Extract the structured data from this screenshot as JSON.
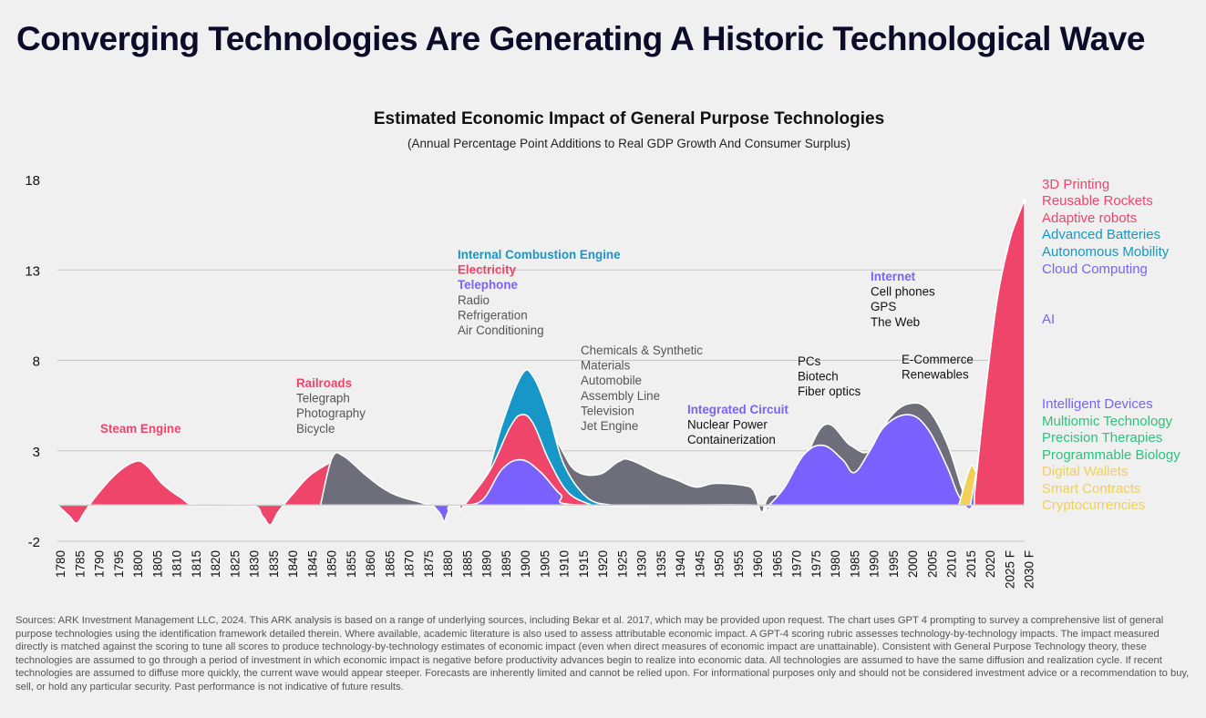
{
  "page": {
    "title": "Converging Technologies Are Generating A Historic Technological Wave",
    "sources": "Sources: ARK Investment Management LLC, 2024. This ARK analysis is based on a range of underlying sources, including Bekar et al. 2017, which may be provided upon request. The chart uses GPT 4 prompting to survey a comprehensive list of general purpose technologies using the identification framework detailed therein. Where available, academic literature is also used to assess attributable economic impact. A GPT-4 scoring rubric assesses technology-by-technology impacts. The impact measured directly is matched against the scoring to tune all scores to produce technology-by-technology estimates of economic impact (even when direct measures of economic impact are unattainable). Consistent with General Purpose Technology theory, these technologies are assumed to go through a period of investment in which economic impact is negative before productivity advances begin to realize into economic data. All technologies are assumed to have the same diffusion and realization cycle. If recent technologies are assumed to diffuse more quickly, the current wave would appear steeper. Forecasts are inherently limited and cannot be relied upon. For informational purposes only and should not be considered investment advice or a recommendation to buy, sell, or hold any particular security. Past performance is not indicative of future results."
  },
  "colors": {
    "pink": "#f0456b",
    "blue": "#1697c8",
    "purple": "#7b61ff",
    "gray": "#6e6e7a",
    "green": "#2ec27e",
    "yellow": "#f0cf5a",
    "dark": "#111111",
    "text_gray": "#555555"
  },
  "chart_data": {
    "type": "area",
    "title": "Estimated Economic Impact of General Purpose Technologies",
    "subtitle": "(Annual Percentage Point Additions to Real GDP Growth And Consumer Surplus)",
    "ylim": [
      -2,
      18
    ],
    "yticks": [
      "18",
      "13",
      "8",
      "3",
      "-2"
    ],
    "ytick_values": [
      18,
      13,
      8,
      3,
      -2
    ],
    "grid": true,
    "xticks": [
      "1780",
      "1785",
      "1790",
      "1795",
      "1800",
      "1805",
      "1810",
      "1815",
      "1820",
      "1825",
      "1830",
      "1835",
      "1840",
      "1845",
      "1850",
      "1855",
      "1860",
      "1865",
      "1870",
      "1875",
      "1880",
      "1885",
      "1890",
      "1895",
      "1900",
      "1905",
      "1910",
      "1915",
      "1920",
      "1925",
      "1930",
      "1935",
      "1940",
      "1945",
      "1950",
      "1955",
      "1960",
      "1965",
      "1970",
      "1975",
      "1980",
      "1985",
      "1990",
      "1995",
      "2000",
      "2005",
      "2010",
      "2015",
      "2020",
      "2025 F",
      "2030 F"
    ],
    "layers": [
      {
        "color_key": "pink",
        "points": [
          [
            1780,
            0
          ],
          [
            1783,
            -0.6
          ],
          [
            1785,
            -1.0
          ],
          [
            1787,
            -0.4
          ],
          [
            1790,
            0.5
          ],
          [
            1795,
            1.7
          ],
          [
            1800,
            2.4
          ],
          [
            1803,
            2.2
          ],
          [
            1807,
            1.2
          ],
          [
            1812,
            0.4
          ],
          [
            1816,
            0
          ],
          [
            1830,
            0
          ],
          [
            1833,
            -0.6
          ],
          [
            1835,
            -1.1
          ],
          [
            1837,
            -0.4
          ],
          [
            1840,
            0.4
          ],
          [
            1845,
            1.6
          ],
          [
            1850,
            2.3
          ],
          [
            1853,
            2.7
          ],
          [
            1857,
            1.8
          ],
          [
            1862,
            0.6
          ],
          [
            1868,
            0
          ],
          [
            1900,
            0
          ]
        ]
      },
      {
        "color_key": "gray",
        "points": [
          [
            1848,
            0
          ],
          [
            1851,
            2.6
          ],
          [
            1854,
            2.7
          ],
          [
            1860,
            1.6
          ],
          [
            1866,
            0.7
          ],
          [
            1873,
            0.2
          ],
          [
            1879,
            0
          ],
          [
            1900,
            0
          ]
        ]
      },
      {
        "color_key": "purple",
        "points": [
          [
            1877,
            0
          ],
          [
            1879,
            -0.5
          ],
          [
            1880,
            -0.9
          ],
          [
            1881,
            -0.4
          ],
          [
            1883,
            0
          ],
          [
            1900,
            0
          ]
        ]
      },
      {
        "color_key": "gray",
        "points": [
          [
            1895,
            0
          ],
          [
            1900,
            3.9
          ],
          [
            1905,
            5.2
          ],
          [
            1910,
            3.2
          ],
          [
            1914,
            1.9
          ],
          [
            1920,
            1.7
          ],
          [
            1925,
            2.4
          ],
          [
            1928,
            2.5
          ],
          [
            1935,
            1.8
          ],
          [
            1940,
            1.4
          ],
          [
            1945,
            1.0
          ],
          [
            1950,
            1.2
          ],
          [
            1957,
            1.1
          ],
          [
            1960,
            0.8
          ],
          [
            1962,
            -0.4
          ],
          [
            1964,
            0.5
          ],
          [
            1970,
            1.0
          ],
          [
            1978,
            4.4
          ],
          [
            1985,
            3.3
          ],
          [
            1990,
            3.0
          ],
          [
            1995,
            4.8
          ],
          [
            2000,
            5.6
          ],
          [
            2005,
            5.3
          ],
          [
            2010,
            3.4
          ],
          [
            2014,
            0.8
          ],
          [
            2016,
            0.2
          ],
          [
            2020,
            0
          ]
        ]
      },
      {
        "color_key": "blue",
        "points": [
          [
            1885,
            0
          ],
          [
            1890,
            1.0
          ],
          [
            1895,
            4.5
          ],
          [
            1900,
            7.2
          ],
          [
            1903,
            7.1
          ],
          [
            1907,
            5.0
          ],
          [
            1911,
            2.2
          ],
          [
            1917,
            0.4
          ],
          [
            1923,
            0
          ]
        ]
      },
      {
        "color_key": "pink",
        "points": [
          [
            1884,
            -0.3
          ],
          [
            1887,
            0.5
          ],
          [
            1892,
            2.0
          ],
          [
            1897,
            4.3
          ],
          [
            1900,
            5.0
          ],
          [
            1903,
            4.5
          ],
          [
            1907,
            2.5
          ],
          [
            1912,
            0.7
          ],
          [
            1918,
            0
          ]
        ]
      },
      {
        "color_key": "purple",
        "points": [
          [
            1885,
            0
          ],
          [
            1890,
            0.3
          ],
          [
            1895,
            2.0
          ],
          [
            1900,
            2.5
          ],
          [
            1905,
            1.8
          ],
          [
            1910,
            0.6
          ],
          [
            1915,
            0
          ],
          [
            1960,
            0
          ],
          [
            1962,
            -0.4
          ],
          [
            1964,
            0
          ],
          [
            1968,
            1.0
          ],
          [
            1973,
            2.8
          ],
          [
            1978,
            3.3
          ],
          [
            1983,
            2.5
          ],
          [
            1986,
            1.8
          ],
          [
            1990,
            3.0
          ],
          [
            1994,
            4.4
          ],
          [
            2000,
            5.0
          ],
          [
            2005,
            4.2
          ],
          [
            2010,
            2.1
          ],
          [
            2013,
            0.5
          ],
          [
            2016,
            -0.2
          ],
          [
            2018,
            1.0
          ],
          [
            2020,
            0
          ]
        ]
      },
      {
        "color_key": "yellow",
        "points": [
          [
            2013,
            0
          ],
          [
            2016,
            2.1
          ],
          [
            2018,
            1.8
          ],
          [
            2021,
            2.9
          ],
          [
            2024,
            3.5
          ],
          [
            2027,
            3.3
          ],
          [
            2030,
            3.0
          ]
        ]
      },
      {
        "color_key": "green",
        "points": [
          [
            2019,
            0
          ],
          [
            2022,
            1.5
          ],
          [
            2026,
            2.5
          ],
          [
            2030,
            2.9
          ]
        ]
      },
      {
        "color_key": "purple",
        "points": [
          [
            2016,
            0
          ],
          [
            2019,
            3.5
          ],
          [
            2022,
            6.0
          ],
          [
            2025,
            9.0
          ],
          [
            2027,
            11.0
          ],
          [
            2030,
            12.8
          ]
        ]
      },
      {
        "color_key": "blue",
        "points": [
          [
            2017,
            0
          ],
          [
            2020,
            5.0
          ],
          [
            2023,
            9.5
          ],
          [
            2026,
            12.5
          ],
          [
            2028,
            14.0
          ],
          [
            2030,
            15.3
          ]
        ]
      },
      {
        "color_key": "pink",
        "points": [
          [
            2017,
            0.5
          ],
          [
            2020,
            6.5
          ],
          [
            2023,
            11.5
          ],
          [
            2026,
            14.5
          ],
          [
            2028,
            15.8
          ],
          [
            2030,
            16.9
          ]
        ]
      }
    ],
    "annotations": [
      {
        "lines": [
          {
            "text": "Steam Engine",
            "color_key": "pink",
            "bold": true
          }
        ]
      },
      {
        "lines": [
          {
            "text": "Railroads",
            "color_key": "pink",
            "bold": true
          },
          {
            "text": "Telegraph",
            "color_key": "text_gray"
          },
          {
            "text": "Photography",
            "color_key": "text_gray"
          },
          {
            "text": "Bicycle",
            "color_key": "text_gray"
          }
        ]
      },
      {
        "lines": [
          {
            "text": "Internal Combustion Engine",
            "color_key": "blue",
            "bold": true
          },
          {
            "text": "Electricity",
            "color_key": "pink",
            "bold": true
          },
          {
            "text": "Telephone",
            "color_key": "purple",
            "bold": true
          },
          {
            "text": "Radio",
            "color_key": "text_gray"
          },
          {
            "text": "Refrigeration",
            "color_key": "text_gray"
          },
          {
            "text": "Air Conditioning",
            "color_key": "text_gray"
          }
        ]
      },
      {
        "lines": [
          {
            "text": "Chemicals & Synthetic",
            "color_key": "text_gray"
          },
          {
            "text": "Materials",
            "color_key": "text_gray"
          },
          {
            "text": "Automobile",
            "color_key": "text_gray"
          },
          {
            "text": "Assembly Line",
            "color_key": "text_gray"
          },
          {
            "text": "Television",
            "color_key": "text_gray"
          },
          {
            "text": "Jet Engine",
            "color_key": "text_gray"
          }
        ]
      },
      {
        "lines": [
          {
            "text": "Integrated Circuit",
            "color_key": "purple",
            "bold": true
          },
          {
            "text": "Nuclear Power",
            "color_key": "dark"
          },
          {
            "text": "Containerization",
            "color_key": "dark"
          }
        ]
      },
      {
        "lines": [
          {
            "text": "PCs",
            "color_key": "dark"
          },
          {
            "text": "Biotech",
            "color_key": "dark"
          },
          {
            "text": "Fiber optics",
            "color_key": "dark"
          }
        ]
      },
      {
        "lines": [
          {
            "text": "Internet",
            "color_key": "purple",
            "bold": true
          },
          {
            "text": "Cell phones",
            "color_key": "dark"
          },
          {
            "text": "GPS",
            "color_key": "dark"
          },
          {
            "text": "The Web",
            "color_key": "dark"
          }
        ]
      },
      {
        "lines": [
          {
            "text": "E-Commerce",
            "color_key": "dark"
          },
          {
            "text": "Renewables",
            "color_key": "dark"
          }
        ]
      }
    ],
    "legend": [
      {
        "text": "3D Printing",
        "color_key": "pink"
      },
      {
        "text": "Reusable Rockets",
        "color_key": "pink"
      },
      {
        "text": "Adaptive robots",
        "color_key": "pink"
      },
      {
        "text": "Advanced Batteries",
        "color_key": "blue"
      },
      {
        "text": "Autonomous Mobility",
        "color_key": "blue"
      },
      {
        "text": "Cloud Computing",
        "color_key": "purple"
      },
      {
        "text": "AI",
        "color_key": "purple"
      },
      {
        "text": "Intelligent Devices",
        "color_key": "purple"
      },
      {
        "text": "Multiomic Technology",
        "color_key": "green"
      },
      {
        "text": "Precision Therapies",
        "color_key": "green"
      },
      {
        "text": "Programmable Biology",
        "color_key": "green"
      },
      {
        "text": "Digital Wallets",
        "color_key": "yellow"
      },
      {
        "text": "Smart Contracts",
        "color_key": "yellow"
      },
      {
        "text": "Cryptocurrencies",
        "color_key": "yellow"
      }
    ]
  }
}
